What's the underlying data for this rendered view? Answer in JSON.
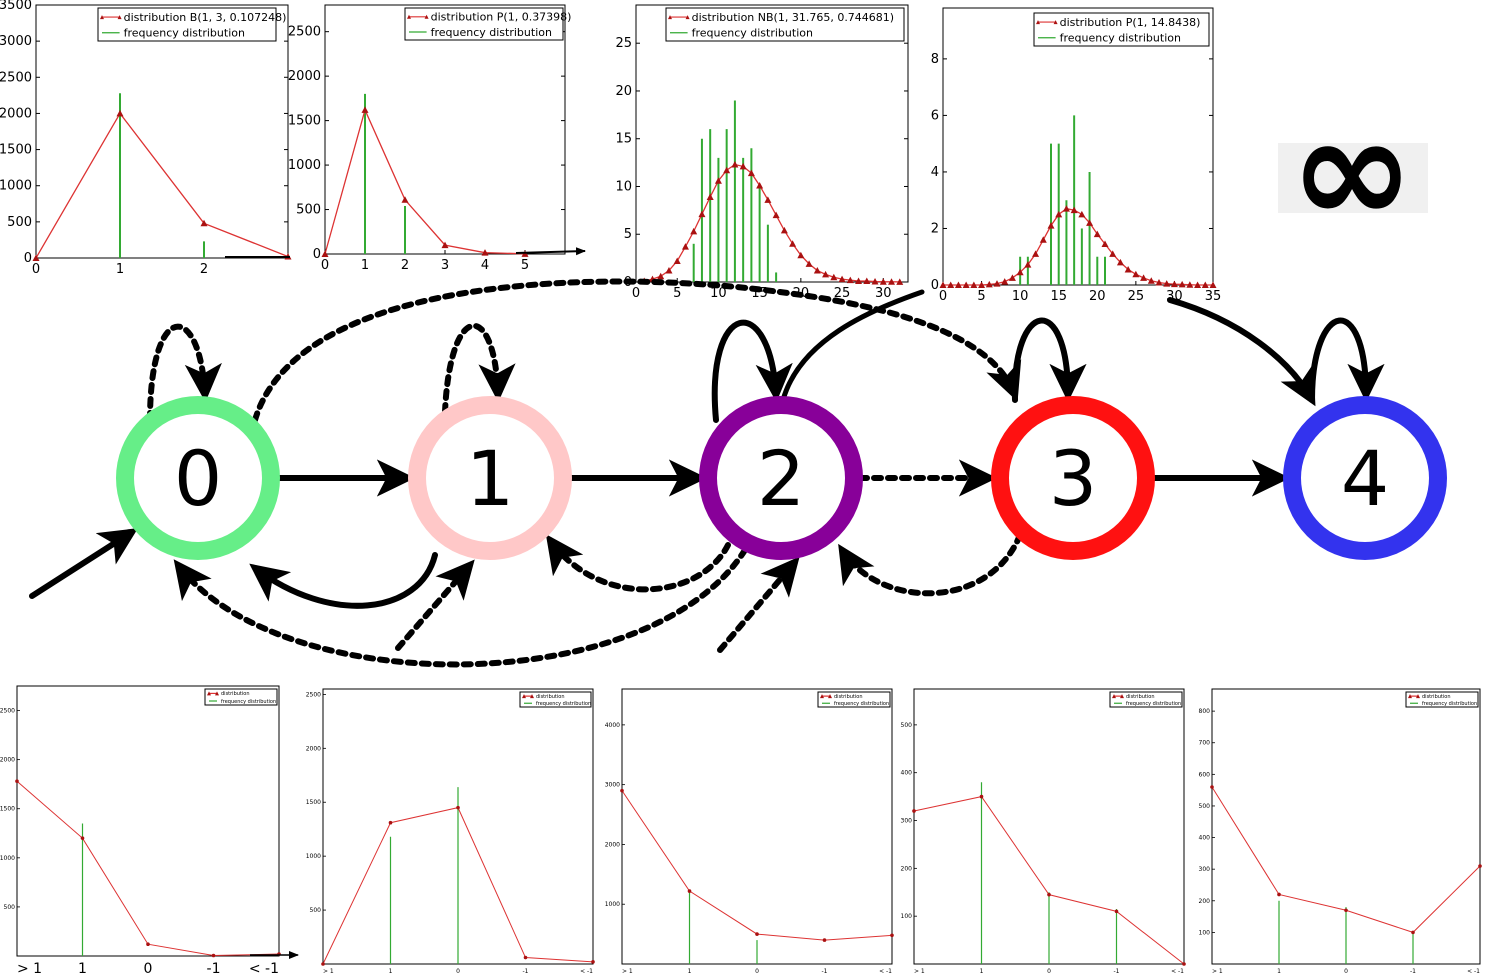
{
  "top_charts": [
    {
      "legend": [
        "distribution B(1, 3, 0.107248)",
        "frequency distribution"
      ],
      "xticks": [
        "0",
        "1",
        "2"
      ],
      "xlim": [
        0,
        3
      ],
      "yticks": [
        "0",
        "500",
        "1000",
        "1500",
        "2000",
        "2500",
        "3000",
        "3500"
      ],
      "ylim": [
        0,
        3500
      ]
    },
    {
      "legend": [
        "distribution P(1, 0.37398)",
        "frequency distribution"
      ],
      "xticks": [
        "0",
        "1",
        "2",
        "3",
        "4",
        "5"
      ],
      "xlim": [
        0,
        6
      ],
      "yticks": [
        "0",
        "500",
        "1000",
        "1500",
        "2000",
        "2500"
      ],
      "ylim": [
        0,
        2800
      ]
    },
    {
      "legend": [
        "distribution NB(1, 31.765, 0.744681)",
        "frequency distribution"
      ],
      "xticks": [
        "0",
        "5",
        "10",
        "15",
        "20",
        "25",
        "30"
      ],
      "xlim": [
        0,
        33
      ],
      "yticks": [
        "0",
        "5",
        "10",
        "15",
        "20",
        "25"
      ],
      "ylim": [
        0,
        29
      ]
    },
    {
      "legend": [
        "distribution P(1, 14.8438)",
        "frequency distribution"
      ],
      "xticks": [
        "0",
        "5",
        "10",
        "15",
        "20",
        "25",
        "30",
        "35"
      ],
      "xlim": [
        0,
        35
      ],
      "yticks": [
        "0",
        "2",
        "4",
        "6",
        "8"
      ],
      "ylim": [
        0,
        9.8
      ]
    }
  ],
  "infinity_symbol": "∞",
  "states": [
    {
      "label": "0",
      "color": "#66ee88"
    },
    {
      "label": "1",
      "color": "#ffc8c8"
    },
    {
      "label": "2",
      "color": "#880099"
    },
    {
      "label": "3",
      "color": "#ff1111"
    },
    {
      "label": "4",
      "color": "#3333ee"
    }
  ],
  "bottom_charts": [
    {
      "legend": [
        "distribution",
        "frequency distribution"
      ],
      "xticks": [
        "> 1",
        "1",
        "0",
        "-1",
        "< -1"
      ],
      "yticks": [
        "500",
        "1000",
        "1500",
        "2000",
        "2500"
      ],
      "ylim": [
        0,
        2750
      ]
    },
    {
      "legend": [
        "distribution",
        "frequency distribution"
      ],
      "xticks": [
        "> 1",
        "1",
        "0",
        "-1",
        "< -1"
      ],
      "yticks": [
        "500",
        "1000",
        "1500",
        "2000",
        "2500"
      ],
      "ylim": [
        0,
        2550
      ]
    },
    {
      "legend": [
        "distribution",
        "frequency distribution"
      ],
      "xticks": [
        "> 1",
        "1",
        "0",
        "-1",
        "< -1"
      ],
      "yticks": [
        "1000",
        "2000",
        "3000",
        "4000"
      ],
      "ylim": [
        0,
        4600
      ]
    },
    {
      "legend": [
        "distribution",
        "frequency distribution"
      ],
      "xticks": [
        "> 1",
        "1",
        "0",
        "-1",
        "< -1"
      ],
      "yticks": [
        "100",
        "200",
        "300",
        "400",
        "500"
      ],
      "ylim": [
        0,
        575
      ]
    },
    {
      "legend": [
        "distribution",
        "frequency distribution"
      ],
      "xticks": [
        "> 1",
        "1",
        "0",
        "-1",
        "< -1"
      ],
      "yticks": [
        "100",
        "200",
        "300",
        "400",
        "500",
        "600",
        "700",
        "800"
      ],
      "ylim": [
        0,
        870
      ]
    }
  ],
  "chart_data": [
    {
      "type": "line",
      "legend": [
        "distribution B(1, 3, 0.107248)",
        "frequency distribution"
      ],
      "series": [
        {
          "name": "distribution B(1, 3, 0.107248)",
          "x": [
            0,
            1,
            2,
            3
          ],
          "y": [
            0,
            2000,
            480,
            20
          ]
        },
        {
          "name": "frequency distribution",
          "x": [
            1,
            2
          ],
          "y": [
            2280,
            230
          ]
        }
      ]
    },
    {
      "type": "line",
      "legend": [
        "distribution P(1, 0.37398)",
        "frequency distribution"
      ],
      "series": [
        {
          "name": "distribution P(1, 0.37398)",
          "x": [
            0,
            1,
            2,
            3,
            4,
            5
          ],
          "y": [
            0,
            1620,
            610,
            100,
            15,
            2
          ]
        },
        {
          "name": "frequency distribution",
          "x": [
            1,
            2
          ],
          "y": [
            1800,
            540
          ]
        }
      ]
    },
    {
      "type": "line",
      "legend": [
        "distribution NB(1, 31.765, 0.744681)",
        "frequency distribution"
      ],
      "series": [
        {
          "name": "distribution NB(1, 31.765, 0.744681)",
          "x": [
            1,
            2,
            3,
            4,
            5,
            6,
            7,
            8,
            9,
            10,
            11,
            12,
            13,
            14,
            15,
            16,
            17,
            18,
            19,
            20,
            21,
            22,
            23,
            24,
            25,
            26,
            27,
            28,
            29,
            30,
            31,
            32
          ],
          "y": [
            0.1,
            0.3,
            0.6,
            1.2,
            2.2,
            3.7,
            5.3,
            7.1,
            8.9,
            10.6,
            11.7,
            12.3,
            12.1,
            11.4,
            10.1,
            8.6,
            7.0,
            5.4,
            4.0,
            2.8,
            1.9,
            1.2,
            0.8,
            0.5,
            0.3,
            0.2,
            0.1,
            0.1,
            0.05,
            0.03,
            0.02,
            0.01
          ]
        },
        {
          "name": "frequency distribution",
          "x": [
            7,
            8,
            9,
            10,
            11,
            12,
            13,
            14,
            15,
            16,
            17
          ],
          "y": [
            4,
            15,
            16,
            13,
            16,
            19,
            13,
            14,
            10,
            6,
            1
          ]
        }
      ]
    },
    {
      "type": "line",
      "legend": [
        "distribution P(1, 14.8438)",
        "frequency distribution"
      ],
      "series": [
        {
          "name": "distribution P(1, 14.8438)",
          "x": [
            0,
            1,
            2,
            3,
            4,
            5,
            6,
            7,
            8,
            9,
            10,
            11,
            12,
            13,
            14,
            15,
            16,
            17,
            18,
            19,
            20,
            21,
            22,
            23,
            24,
            25,
            26,
            27,
            28,
            29,
            30,
            31,
            32,
            33,
            34,
            35
          ],
          "y": [
            0,
            0,
            0,
            0,
            0,
            0,
            0.02,
            0.05,
            0.12,
            0.25,
            0.45,
            0.72,
            1.1,
            1.6,
            2.1,
            2.5,
            2.7,
            2.65,
            2.5,
            2.2,
            1.8,
            1.45,
            1.1,
            0.8,
            0.55,
            0.38,
            0.25,
            0.15,
            0.09,
            0.05,
            0.03,
            0.02,
            0.01,
            0,
            0,
            0
          ]
        },
        {
          "name": "frequency distribution",
          "x": [
            10,
            11,
            14,
            15,
            16,
            17,
            18,
            19,
            20,
            21
          ],
          "y": [
            1,
            1,
            5,
            5,
            3,
            6,
            2,
            4,
            1,
            1
          ]
        }
      ]
    },
    {
      "type": "line",
      "categories": [
        "> 1",
        "1",
        "0",
        "-1",
        "< -1"
      ],
      "series": [
        {
          "name": "distribution",
          "values": [
            1780,
            1200,
            120,
            5,
            20
          ]
        },
        {
          "name": "frequency distribution",
          "values": [
            0,
            1350,
            0,
            0,
            0
          ]
        }
      ]
    },
    {
      "type": "line",
      "categories": [
        "> 1",
        "1",
        "0",
        "-1",
        "< -1"
      ],
      "series": [
        {
          "name": "distribution",
          "values": [
            0,
            1310,
            1450,
            60,
            20
          ]
        },
        {
          "name": "frequency distribution",
          "values": [
            0,
            1180,
            1640,
            0,
            0
          ]
        }
      ]
    },
    {
      "type": "line",
      "categories": [
        "> 1",
        "1",
        "0",
        "-1",
        "< -1"
      ],
      "series": [
        {
          "name": "distribution",
          "values": [
            2900,
            1220,
            500,
            400,
            480
          ]
        },
        {
          "name": "frequency distribution",
          "values": [
            0,
            1220,
            400,
            0,
            0
          ]
        }
      ]
    },
    {
      "type": "line",
      "categories": [
        "> 1",
        "1",
        "0",
        "-1",
        "< -1"
      ],
      "series": [
        {
          "name": "distribution",
          "values": [
            320,
            350,
            145,
            110,
            0
          ]
        },
        {
          "name": "frequency distribution",
          "values": [
            0,
            380,
            150,
            115,
            0
          ]
        }
      ]
    },
    {
      "type": "line",
      "categories": [
        "> 1",
        "1",
        "0",
        "-1",
        "< -1"
      ],
      "series": [
        {
          "name": "distribution",
          "values": [
            560,
            220,
            170,
            100,
            310
          ]
        },
        {
          "name": "frequency distribution",
          "values": [
            0,
            200,
            180,
            100,
            0
          ]
        }
      ]
    }
  ]
}
